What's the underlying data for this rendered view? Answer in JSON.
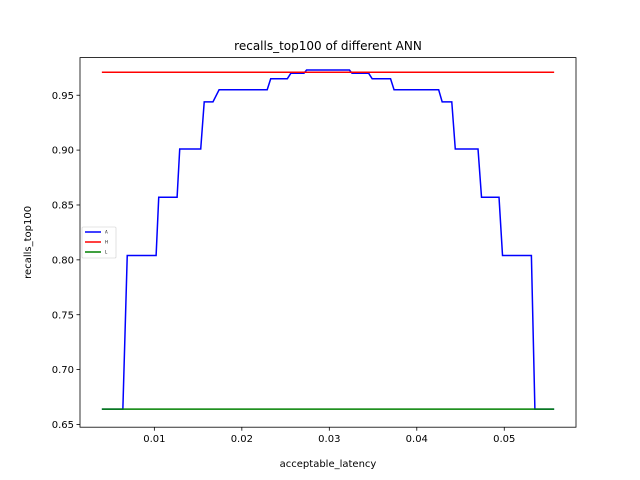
{
  "chart_data": {
    "type": "line",
    "title": "recalls_top100 of different ANN",
    "xlabel": "acceptable_latency",
    "ylabel": "recalls_top100",
    "xlim": [
      0.0015,
      0.0582
    ],
    "ylim": [
      0.6475,
      0.9843
    ],
    "xticks": [
      0.01,
      0.02,
      0.03,
      0.04,
      0.05
    ],
    "xtick_labels": [
      "0.01",
      "0.02",
      "0.03",
      "0.04",
      "0.05"
    ],
    "yticks": [
      0.65,
      0.7,
      0.75,
      0.8,
      0.85,
      0.9,
      0.95
    ],
    "ytick_labels": [
      "0.65",
      "0.70",
      "0.75",
      "0.80",
      "0.85",
      "0.90",
      "0.95"
    ],
    "grid": false,
    "legend": {
      "placement": "center-left"
    },
    "series": [
      {
        "name": "A",
        "color": "#0000ff",
        "points": [
          [
            0.004,
            0.664
          ],
          [
            0.0064,
            0.664
          ],
          [
            0.0069,
            0.804
          ],
          [
            0.0102,
            0.804
          ],
          [
            0.0105,
            0.857
          ],
          [
            0.0126,
            0.857
          ],
          [
            0.0129,
            0.901
          ],
          [
            0.0153,
            0.901
          ],
          [
            0.0157,
            0.944
          ],
          [
            0.0167,
            0.944
          ],
          [
            0.0174,
            0.955
          ],
          [
            0.0229,
            0.955
          ],
          [
            0.0233,
            0.965
          ],
          [
            0.0252,
            0.965
          ],
          [
            0.0256,
            0.97
          ],
          [
            0.0271,
            0.97
          ],
          [
            0.0274,
            0.973
          ],
          [
            0.0323,
            0.973
          ],
          [
            0.0326,
            0.97
          ],
          [
            0.0345,
            0.97
          ],
          [
            0.0349,
            0.965
          ],
          [
            0.037,
            0.965
          ],
          [
            0.0374,
            0.955
          ],
          [
            0.0425,
            0.955
          ],
          [
            0.0429,
            0.944
          ],
          [
            0.044,
            0.944
          ],
          [
            0.0444,
            0.901
          ],
          [
            0.047,
            0.901
          ],
          [
            0.0474,
            0.857
          ],
          [
            0.0494,
            0.857
          ],
          [
            0.0498,
            0.804
          ],
          [
            0.0531,
            0.804
          ],
          [
            0.0535,
            0.664
          ],
          [
            0.0557,
            0.664
          ]
        ]
      },
      {
        "name": "H",
        "color": "#ff0000",
        "points": [
          [
            0.004,
            0.971
          ],
          [
            0.0557,
            0.971
          ]
        ]
      },
      {
        "name": "L",
        "color": "#008000",
        "points": [
          [
            0.004,
            0.664
          ],
          [
            0.0557,
            0.664
          ]
        ]
      }
    ]
  }
}
